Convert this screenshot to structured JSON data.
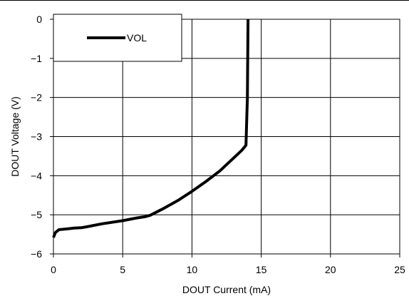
{
  "chart_data": {
    "type": "line",
    "xlabel": "DOUT Current (mA)",
    "ylabel": "DOUT Voltage (V)",
    "xlim": [
      0,
      25
    ],
    "ylim": [
      -6,
      0
    ],
    "xticks": [
      0,
      5,
      10,
      15,
      20,
      25
    ],
    "xtick_labels": [
      "0",
      "5",
      "10",
      "15",
      "20",
      "25"
    ],
    "yticks": [
      0,
      -1,
      -2,
      -3,
      -4,
      -5,
      -6
    ],
    "ytick_labels": [
      "0",
      "−1",
      "−2",
      "−3",
      "−4",
      "−5",
      "−6"
    ],
    "grid": true,
    "legend_position": "top-left",
    "series": [
      {
        "name": "VOL",
        "color": "#000000",
        "points": [
          [
            0.0,
            -5.58
          ],
          [
            0.15,
            -5.45
          ],
          [
            0.4,
            -5.38
          ],
          [
            1.0,
            -5.36
          ],
          [
            1.5,
            -5.34
          ],
          [
            2.0,
            -5.33
          ],
          [
            2.5,
            -5.3
          ],
          [
            3.5,
            -5.23
          ],
          [
            5.0,
            -5.15
          ],
          [
            6.0,
            -5.08
          ],
          [
            6.6,
            -5.05
          ],
          [
            7.0,
            -5.01
          ],
          [
            8.0,
            -4.83
          ],
          [
            9.0,
            -4.63
          ],
          [
            10.0,
            -4.4
          ],
          [
            11.0,
            -4.15
          ],
          [
            12.0,
            -3.88
          ],
          [
            13.0,
            -3.55
          ],
          [
            13.6,
            -3.35
          ],
          [
            13.9,
            -3.22
          ],
          [
            14.0,
            -2.0
          ],
          [
            14.05,
            0.0
          ]
        ]
      }
    ]
  }
}
